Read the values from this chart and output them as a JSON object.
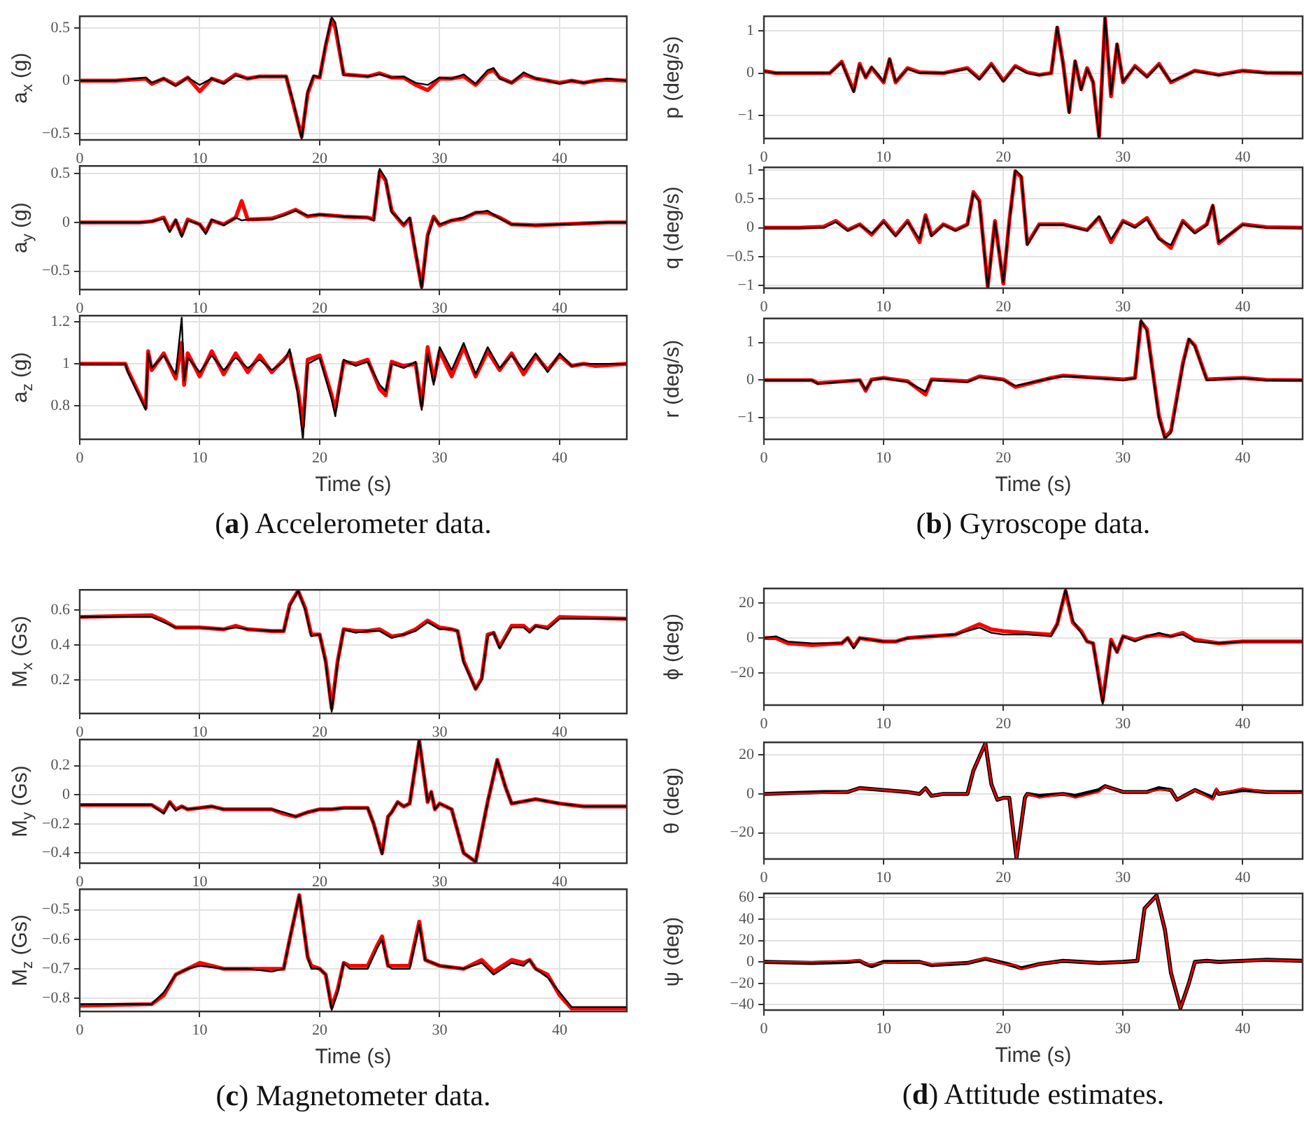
{
  "chart_data": [
    {
      "type": "line",
      "ylabel": "a$_{x}$ (g)",
      "marker": "none",
      "grid": true,
      "xlim": [
        0,
        45.6
      ],
      "xticks": [
        0,
        10,
        20,
        30,
        40
      ],
      "ylim": [
        -0.56,
        0.61
      ],
      "yticks": [
        -0.5,
        0,
        0.5
      ],
      "x": [
        0,
        3,
        5.5,
        6,
        7,
        8,
        9,
        10,
        11,
        12,
        13,
        14,
        15,
        16,
        17.2,
        17.8,
        18.5,
        19,
        19.5,
        20,
        20.5,
        21,
        21.3,
        22,
        23,
        24,
        25,
        26,
        27,
        28,
        29,
        30,
        31,
        32,
        33,
        34,
        34.5,
        35,
        36,
        37,
        38,
        39,
        40,
        41,
        42,
        43,
        44,
        45.6
      ],
      "series": [
        {
          "color": "#ff0000",
          "values": [
            0,
            0,
            0.02,
            -0.03,
            0.02,
            -0.04,
            0.03,
            -0.1,
            0.02,
            -0.02,
            0.06,
            0.02,
            0.04,
            0.04,
            0.04,
            -0.22,
            -0.53,
            -0.12,
            0.04,
            0.03,
            0.33,
            0.58,
            0.5,
            0.06,
            0.05,
            0.04,
            0.07,
            0.03,
            0.03,
            -0.04,
            -0.09,
            0.02,
            0.02,
            0.04,
            -0.04,
            0.08,
            0.1,
            0.03,
            -0.02,
            0.06,
            0.02,
            0,
            -0.02,
            0,
            -0.02,
            0,
            0.01,
            0
          ]
        },
        {
          "color": "#000000",
          "values": [
            0,
            0,
            0.03,
            -0.02,
            0.02,
            -0.05,
            0.03,
            -0.04,
            0.02,
            -0.03,
            0.05,
            0.02,
            0.04,
            0.04,
            0.04,
            -0.2,
            -0.55,
            -0.1,
            0.05,
            0.03,
            0.35,
            0.6,
            0.55,
            0.05,
            0.05,
            0.04,
            0.06,
            0.03,
            0.04,
            -0.02,
            -0.04,
            0.03,
            0.02,
            0.06,
            -0.03,
            0.1,
            0.12,
            0.02,
            -0.02,
            0.08,
            0.02,
            0,
            -0.03,
            0,
            -0.02,
            0,
            0.02,
            0
          ]
        }
      ]
    },
    {
      "type": "line",
      "ylabel": "a$_{y}$ (g)",
      "marker": "none",
      "grid": true,
      "xlim": [
        0,
        45.6
      ],
      "xticks": [
        0,
        10,
        20,
        30,
        40
      ],
      "ylim": [
        -0.69,
        0.58
      ],
      "yticks": [
        -0.5,
        0,
        0.5
      ],
      "x": [
        0,
        5,
        6,
        7,
        7.5,
        8,
        8.5,
        9,
        10,
        10.5,
        11,
        12,
        13,
        13.5,
        14,
        16,
        17,
        18,
        19,
        20,
        22,
        24,
        24.5,
        25,
        25.5,
        26,
        26.5,
        27,
        27.5,
        28,
        28.5,
        29,
        29.5,
        30,
        31,
        32,
        33,
        34,
        35,
        36,
        38,
        40,
        42,
        44,
        45.6
      ],
      "series": [
        {
          "color": "#ff0000",
          "values": [
            0,
            0,
            0.01,
            0.05,
            -0.08,
            0.02,
            -0.13,
            0.03,
            -0.02,
            -0.1,
            0.02,
            -0.02,
            0.05,
            0.22,
            0.03,
            0.04,
            0.08,
            0.13,
            0.06,
            0.08,
            0.06,
            0.05,
            0.03,
            0.52,
            0.43,
            0.12,
            0.04,
            -0.03,
            0.04,
            -0.32,
            -0.66,
            -0.13,
            0.06,
            -0.03,
            0.02,
            0.04,
            0.1,
            0.1,
            0.05,
            -0.02,
            -0.03,
            -0.02,
            -0.01,
            0,
            0
          ]
        },
        {
          "color": "#000000",
          "values": [
            0,
            0,
            0.01,
            0.04,
            -0.1,
            0.03,
            -0.15,
            0.02,
            -0.02,
            -0.12,
            0.03,
            -0.03,
            0.05,
            0.02,
            0.03,
            0.03,
            0.07,
            0.12,
            0.07,
            0.08,
            0.06,
            0.05,
            0.02,
            0.55,
            0.45,
            0.1,
            0.05,
            -0.02,
            0.05,
            -0.3,
            -0.68,
            -0.15,
            0.05,
            -0.02,
            0.02,
            0.05,
            0.1,
            0.12,
            0.04,
            -0.02,
            -0.03,
            -0.02,
            -0.01,
            0,
            0
          ]
        }
      ]
    },
    {
      "type": "line",
      "ylabel": "a$_{z}$ (g)",
      "xlabel": "Time (s)",
      "annotations": [
        "(a) Accelerometer data."
      ],
      "marker": "none",
      "grid": true,
      "xlim": [
        0,
        45.6
      ],
      "xticks": [
        0,
        10,
        20,
        30,
        40
      ],
      "ylim": [
        0.64,
        1.23
      ],
      "yticks": [
        0.8,
        1,
        1.2
      ],
      "x": [
        0,
        3.8,
        4,
        5.5,
        5.7,
        6,
        7,
        8,
        8.5,
        8.7,
        9,
        10,
        11,
        12,
        13,
        14,
        15,
        16,
        17,
        17.5,
        18.2,
        18.6,
        19,
        20,
        21,
        21.3,
        22,
        23,
        24,
        25,
        25.5,
        26,
        27,
        28,
        28.5,
        29,
        29.5,
        30,
        31,
        32,
        33,
        34,
        35,
        36,
        37,
        38,
        39,
        40,
        41,
        42,
        43,
        45.6
      ],
      "series": [
        {
          "color": "#ff0000",
          "values": [
            1,
            1,
            0.97,
            0.79,
            1.06,
            0.97,
            1.05,
            0.93,
            1.1,
            0.9,
            1.05,
            0.94,
            1.06,
            0.95,
            1.05,
            0.96,
            1.04,
            0.96,
            1.02,
            1.05,
            0.87,
            0.7,
            1.02,
            1.04,
            0.85,
            0.78,
            1.01,
            1,
            1.02,
            0.88,
            0.85,
            1.01,
            0.99,
            1,
            0.8,
            1.08,
            0.92,
            1.06,
            0.94,
            1.08,
            0.94,
            1.06,
            0.97,
            1.05,
            0.95,
            1.04,
            0.97,
            1.04,
            0.99,
            1,
            0.99,
            1
          ]
        },
        {
          "color": "#000000",
          "values": [
            1,
            1,
            0.96,
            0.78,
            1.05,
            0.98,
            1.04,
            0.95,
            1.22,
            0.92,
            1.03,
            0.96,
            1.04,
            0.97,
            1.03,
            0.98,
            1.02,
            0.97,
            1.01,
            1.07,
            0.85,
            0.64,
            1,
            1.03,
            0.83,
            0.75,
            1.02,
            0.99,
            1.01,
            0.9,
            0.87,
            1,
            0.98,
            1.01,
            0.78,
            1.05,
            0.9,
            1.08,
            0.97,
            1.1,
            0.95,
            1.08,
            0.98,
            1.04,
            0.97,
            1.05,
            0.96,
            1.05,
            0.99,
            1,
            1,
            1
          ]
        }
      ]
    },
    {
      "type": "line",
      "ylabel": "p (deg/s)",
      "marker": "none",
      "grid": true,
      "xlim": [
        0,
        45
      ],
      "xticks": [
        0,
        10,
        20,
        30,
        40
      ],
      "ylim": [
        -1.55,
        1.35
      ],
      "yticks": [
        -1,
        0,
        1
      ],
      "x": [
        0,
        1,
        5.5,
        6.5,
        7,
        7.5,
        8,
        8.5,
        9,
        10,
        10.5,
        11,
        12,
        13,
        15,
        17,
        18,
        19,
        20,
        21,
        22,
        23,
        24,
        24.5,
        25,
        25.5,
        26,
        26.5,
        27,
        27.5,
        28,
        28.5,
        29,
        29.5,
        30,
        31,
        32,
        33,
        34,
        36,
        38,
        40,
        42,
        45
      ],
      "series": [
        {
          "color": "#ff0000",
          "values": [
            0.05,
            0,
            0,
            0.27,
            -0.08,
            -0.42,
            0.22,
            -0.1,
            0.13,
            -0.22,
            0.33,
            -0.22,
            0.12,
            0.02,
            0,
            0.12,
            -0.13,
            0.22,
            -0.18,
            0.17,
            0.02,
            -0.04,
            0,
            1.08,
            0.22,
            -0.92,
            0.28,
            -0.38,
            0.12,
            -0.22,
            -1.5,
            1.3,
            -0.55,
            0.68,
            -0.22,
            0.17,
            -0.08,
            0.22,
            -0.22,
            0.06,
            -0.04,
            0.06,
            0.01,
            0
          ]
        },
        {
          "color": "#000000",
          "values": [
            0.05,
            0,
            0,
            0.25,
            -0.1,
            -0.45,
            0.2,
            -0.1,
            0.15,
            -0.2,
            0.35,
            -0.2,
            0.1,
            0,
            0,
            0.1,
            -0.15,
            0.2,
            -0.2,
            0.15,
            0,
            -0.05,
            0,
            1.1,
            0.2,
            -0.95,
            0.3,
            -0.4,
            0.1,
            -0.2,
            -1.55,
            1.35,
            -0.5,
            0.7,
            -0.2,
            0.15,
            -0.1,
            0.2,
            -0.2,
            0.05,
            -0.05,
            0.05,
            0,
            0
          ]
        }
      ]
    },
    {
      "type": "line",
      "ylabel": "q (deg/s)",
      "marker": "none",
      "grid": true,
      "xlim": [
        0,
        45
      ],
      "xticks": [
        0,
        10,
        20,
        30,
        40
      ],
      "ylim": [
        -1.05,
        1.05
      ],
      "yticks": [
        -1,
        -0.5,
        0,
        0.5,
        1
      ],
      "x": [
        0,
        3,
        5,
        6,
        7,
        8,
        9,
        10,
        11,
        12,
        13,
        13.5,
        14,
        15,
        16,
        17,
        17.5,
        18,
        18.7,
        19.3,
        20,
        20.5,
        21,
        21.5,
        22,
        23,
        25,
        27,
        28,
        29,
        30,
        31,
        32,
        33,
        34,
        35,
        36,
        37,
        37.5,
        38,
        40,
        42,
        45
      ],
      "series": [
        {
          "color": "#ff0000",
          "values": [
            0,
            0,
            0.02,
            0.12,
            -0.04,
            0.06,
            -0.12,
            0.12,
            -0.13,
            0.12,
            -0.25,
            0.22,
            -0.13,
            0.06,
            -0.04,
            0.06,
            0.62,
            0.47,
            -1.02,
            0.12,
            -0.97,
            0.12,
            0.98,
            0.88,
            -0.28,
            0.06,
            0.06,
            -0.04,
            0.18,
            -0.25,
            0.12,
            0.02,
            0.17,
            -0.18,
            -0.35,
            0.12,
            -0.08,
            0.06,
            0.38,
            -0.27,
            0.06,
            0.01,
            0
          ]
        },
        {
          "color": "#000000",
          "values": [
            0,
            0,
            0,
            0.1,
            -0.05,
            0.05,
            -0.1,
            0.1,
            -0.15,
            0.1,
            -0.2,
            0.2,
            -0.15,
            0.05,
            -0.05,
            0.05,
            0.6,
            0.45,
            -1.05,
            0.1,
            -0.95,
            0.1,
            1,
            0.9,
            -0.3,
            0.05,
            0.05,
            -0.05,
            0.2,
            -0.2,
            0.1,
            0,
            0.15,
            -0.2,
            -0.3,
            0.1,
            -0.1,
            0.05,
            0.4,
            -0.25,
            0.05,
            0,
            0
          ]
        }
      ]
    },
    {
      "type": "line",
      "ylabel": "r (deg/s)",
      "xlabel": "Time (s)",
      "annotations": [
        "(b) Gyroscope data."
      ],
      "marker": "none",
      "grid": true,
      "xlim": [
        0,
        45
      ],
      "xticks": [
        0,
        10,
        20,
        30,
        40
      ],
      "ylim": [
        -1.57,
        1.64
      ],
      "yticks": [
        -1,
        0,
        1
      ],
      "x": [
        0,
        4,
        4.5,
        8,
        8.5,
        9,
        10,
        12,
        13.5,
        14,
        17,
        18,
        20,
        21,
        24,
        25,
        28,
        30,
        31,
        31.5,
        32,
        33,
        33.5,
        34,
        35,
        35.5,
        36,
        37,
        40,
        42,
        45
      ],
      "series": [
        {
          "color": "#ff0000",
          "values": [
            0,
            0,
            -0.08,
            0,
            -0.28,
            0.02,
            0.06,
            -0.03,
            -0.38,
            0.02,
            -0.03,
            0.1,
            0.02,
            -0.18,
            0.06,
            0.12,
            0.06,
            0.02,
            0.06,
            1.55,
            1.35,
            -0.95,
            -1.52,
            -1.35,
            0.45,
            1.08,
            0.92,
            0.02,
            0.06,
            0.01,
            0
          ]
        },
        {
          "color": "#000000",
          "values": [
            0,
            0,
            -0.1,
            0,
            -0.25,
            0,
            0.05,
            -0.05,
            -0.3,
            0,
            -0.05,
            0.08,
            0,
            -0.15,
            0.05,
            0.1,
            0.05,
            0,
            0.05,
            1.6,
            1.3,
            -1,
            -1.55,
            -1.4,
            0.4,
            1.1,
            0.9,
            0,
            0.05,
            0,
            0
          ]
        }
      ]
    },
    {
      "type": "line",
      "ylabel": "M$_{x}$ (Gs)",
      "marker": "none",
      "grid": true,
      "xlim": [
        0,
        45.6
      ],
      "xticks": [
        0,
        10,
        20,
        30,
        40
      ],
      "ylim": [
        0.01,
        0.715
      ],
      "yticks": [
        0.2,
        0.4,
        0.6
      ],
      "x": [
        0,
        6,
        7,
        8,
        10,
        12,
        13,
        14,
        16,
        17,
        17.5,
        18.2,
        18.8,
        19.3,
        20,
        20.5,
        21,
        21.5,
        22,
        23,
        24,
        25,
        26,
        27,
        28,
        29,
        30,
        31,
        31.5,
        32,
        33,
        33.5,
        34,
        34.5,
        35,
        36,
        37,
        37.5,
        38,
        39,
        40,
        45.6
      ],
      "series": [
        {
          "color": "#ff0000",
          "values": [
            0.56,
            0.57,
            0.54,
            0.5,
            0.5,
            0.49,
            0.51,
            0.49,
            0.48,
            0.48,
            0.63,
            0.71,
            0.61,
            0.46,
            0.46,
            0.31,
            0.04,
            0.31,
            0.49,
            0.48,
            0.48,
            0.49,
            0.45,
            0.46,
            0.49,
            0.54,
            0.5,
            0.49,
            0.48,
            0.31,
            0.15,
            0.21,
            0.46,
            0.47,
            0.39,
            0.51,
            0.51,
            0.48,
            0.51,
            0.5,
            0.56,
            0.55
          ]
        },
        {
          "color": "#000000",
          "values": [
            0.56,
            0.56,
            0.53,
            0.5,
            0.5,
            0.49,
            0.5,
            0.49,
            0.48,
            0.48,
            0.62,
            0.71,
            0.6,
            0.45,
            0.46,
            0.3,
            0.02,
            0.3,
            0.49,
            0.47,
            0.48,
            0.48,
            0.44,
            0.46,
            0.48,
            0.53,
            0.49,
            0.49,
            0.48,
            0.3,
            0.15,
            0.2,
            0.45,
            0.47,
            0.38,
            0.5,
            0.5,
            0.47,
            0.51,
            0.49,
            0.55,
            0.55
          ]
        }
      ]
    },
    {
      "type": "line",
      "ylabel": "M$_{y}$ (Gs)",
      "marker": "none",
      "grid": true,
      "xlim": [
        0,
        45.6
      ],
      "xticks": [
        0,
        10,
        20,
        30,
        40
      ],
      "ylim": [
        -0.47,
        0.38
      ],
      "yticks": [
        -0.4,
        -0.2,
        0,
        0.2
      ],
      "x": [
        0,
        6,
        7,
        7.5,
        8,
        8.5,
        9,
        10,
        11,
        12,
        14,
        16,
        17,
        18,
        19,
        20,
        21,
        22,
        24,
        24.5,
        25.2,
        25.7,
        26,
        26.5,
        27,
        27.5,
        28.3,
        29,
        29.3,
        29.6,
        30,
        31,
        32,
        33,
        34,
        34.8,
        35.5,
        36,
        38,
        40,
        42,
        45.6
      ],
      "series": [
        {
          "color": "#ff0000",
          "values": [
            -0.07,
            -0.07,
            -0.12,
            -0.05,
            -0.1,
            -0.08,
            -0.1,
            -0.09,
            -0.08,
            -0.1,
            -0.1,
            -0.1,
            -0.13,
            -0.15,
            -0.12,
            -0.1,
            -0.1,
            -0.09,
            -0.09,
            -0.2,
            -0.4,
            -0.15,
            -0.12,
            -0.05,
            -0.08,
            -0.06,
            0.37,
            -0.05,
            0.02,
            -0.1,
            -0.06,
            -0.1,
            -0.4,
            -0.46,
            -0.05,
            0.24,
            0.05,
            -0.06,
            -0.03,
            -0.06,
            -0.08,
            -0.08
          ]
        },
        {
          "color": "#000000",
          "values": [
            -0.07,
            -0.07,
            -0.13,
            -0.05,
            -0.11,
            -0.08,
            -0.1,
            -0.09,
            -0.08,
            -0.1,
            -0.1,
            -0.1,
            -0.12,
            -0.15,
            -0.12,
            -0.1,
            -0.1,
            -0.09,
            -0.09,
            -0.2,
            -0.41,
            -0.15,
            -0.12,
            -0.05,
            -0.08,
            -0.06,
            0.38,
            -0.05,
            0.02,
            -0.1,
            -0.06,
            -0.1,
            -0.4,
            -0.46,
            -0.05,
            0.24,
            0.05,
            -0.06,
            -0.03,
            -0.06,
            -0.08,
            -0.08
          ]
        }
      ]
    },
    {
      "type": "line",
      "ylabel": "M$_{z}$ (Gs)",
      "xlabel": "Time (s)",
      "annotations": [
        "(c) Magnetometer data."
      ],
      "marker": "none",
      "grid": true,
      "xlim": [
        0,
        45.6
      ],
      "xticks": [
        0,
        10,
        20,
        30,
        40
      ],
      "ylim": [
        -0.845,
        -0.43
      ],
      "yticks": [
        -0.8,
        -0.7,
        -0.6,
        -0.5
      ],
      "x": [
        0,
        6,
        7,
        8,
        9,
        10,
        12,
        14,
        16,
        17,
        17.5,
        18.3,
        19,
        19.3,
        20,
        20.5,
        21,
        21.5,
        22,
        22.5,
        24,
        24.8,
        25.2,
        25.7,
        26,
        27.5,
        28.3,
        28.8,
        30,
        32,
        33.5,
        34.5,
        36,
        37,
        37.5,
        38,
        39,
        40,
        41,
        45.6
      ],
      "series": [
        {
          "color": "#ff0000",
          "values": [
            -0.825,
            -0.82,
            -0.79,
            -0.72,
            -0.7,
            -0.68,
            -0.7,
            -0.7,
            -0.7,
            -0.7,
            -0.6,
            -0.45,
            -0.66,
            -0.69,
            -0.7,
            -0.72,
            -0.83,
            -0.77,
            -0.68,
            -0.69,
            -0.69,
            -0.62,
            -0.59,
            -0.69,
            -0.69,
            -0.69,
            -0.54,
            -0.67,
            -0.69,
            -0.7,
            -0.67,
            -0.71,
            -0.67,
            -0.68,
            -0.67,
            -0.7,
            -0.72,
            -0.79,
            -0.835,
            -0.835
          ]
        },
        {
          "color": "#000000",
          "values": [
            -0.82,
            -0.82,
            -0.78,
            -0.72,
            -0.7,
            -0.69,
            -0.7,
            -0.7,
            -0.71,
            -0.7,
            -0.6,
            -0.45,
            -0.66,
            -0.7,
            -0.7,
            -0.72,
            -0.84,
            -0.78,
            -0.68,
            -0.7,
            -0.7,
            -0.63,
            -0.6,
            -0.69,
            -0.7,
            -0.7,
            -0.55,
            -0.67,
            -0.69,
            -0.7,
            -0.68,
            -0.72,
            -0.68,
            -0.69,
            -0.67,
            -0.7,
            -0.73,
            -0.78,
            -0.83,
            -0.83
          ]
        }
      ]
    },
    {
      "type": "line",
      "ylabel": "ϕ (deg)",
      "marker": "none",
      "grid": true,
      "xlim": [
        0,
        45
      ],
      "xticks": [
        0,
        10,
        20,
        30,
        40
      ],
      "ylim": [
        -38.5,
        28.5
      ],
      "yticks": [
        -20,
        0,
        20
      ],
      "x": [
        0,
        1,
        2,
        4,
        6.5,
        7,
        7.5,
        8,
        9,
        10,
        11,
        12,
        14,
        16,
        18,
        19,
        20,
        22,
        24,
        24.5,
        25.2,
        25.8,
        26.5,
        27,
        27.5,
        28.3,
        29,
        29.5,
        30,
        31,
        32,
        33,
        34,
        35,
        36,
        38,
        40,
        45
      ],
      "series": [
        {
          "color": "#ff0000",
          "values": [
            0,
            0,
            -3,
            -4,
            -3,
            0,
            -5,
            0,
            -1,
            -2,
            -2,
            0,
            1,
            2,
            8,
            5,
            4,
            3,
            2,
            8,
            27,
            9,
            4,
            -2,
            -3,
            -36,
            -1,
            -8,
            1,
            -1,
            1,
            2,
            1,
            3,
            -1,
            -3,
            -2,
            -2
          ]
        },
        {
          "color": "#000000",
          "values": [
            0,
            1,
            -2,
            -3,
            -3,
            0,
            -6,
            0,
            -1,
            -2,
            -2,
            0,
            1,
            2,
            6,
            3,
            2,
            2,
            1,
            8,
            28,
            10,
            3,
            -2,
            -3,
            -38,
            -2,
            -8,
            1,
            -2,
            1,
            3,
            1,
            2,
            -2,
            -3,
            -2,
            -2
          ]
        }
      ]
    },
    {
      "type": "line",
      "ylabel": "θ (deg)",
      "marker": "none",
      "grid": true,
      "xlim": [
        0,
        45
      ],
      "xticks": [
        0,
        10,
        20,
        30,
        40
      ],
      "ylim": [
        -33.4,
        26.5
      ],
      "yticks": [
        -20,
        0,
        20
      ],
      "x": [
        0,
        5,
        7,
        8,
        10,
        12,
        13,
        13.5,
        14,
        15,
        16,
        17,
        17.5,
        18.5,
        19,
        19.5,
        20,
        20.5,
        21.1,
        21.8,
        22,
        23,
        25,
        26,
        28,
        28.5,
        30,
        32,
        33,
        34,
        34.5,
        36,
        37.5,
        37.8,
        38,
        40,
        42,
        45
      ],
      "series": [
        {
          "color": "#000000",
          "values": [
            0,
            1,
            1,
            3,
            2,
            1,
            0,
            3,
            -1,
            0,
            0,
            0,
            12,
            26,
            5,
            -3,
            -2,
            -2,
            -33,
            -2,
            0,
            -1,
            0,
            -1,
            2,
            4,
            1,
            1,
            3,
            2,
            -3,
            2,
            -2,
            2,
            0,
            2,
            1,
            1
          ]
        },
        {
          "color": "#ff0000",
          "values": [
            0,
            0.5,
            1,
            3,
            2,
            1,
            0,
            3,
            -1,
            0,
            0,
            0,
            12,
            26,
            5,
            -3,
            -2,
            -2,
            -33,
            -2,
            0,
            -2,
            0,
            -2,
            1,
            4,
            1,
            1,
            2,
            2,
            -3,
            2,
            -3,
            3,
            0,
            3,
            1,
            0.5
          ]
        }
      ]
    },
    {
      "type": "line",
      "ylabel": "ψ (deg)",
      "xlabel": "Time (s)",
      "annotations": [
        "(d) Attitude estimates."
      ],
      "marker": "none",
      "grid": true,
      "xlim": [
        0,
        45
      ],
      "xticks": [
        0,
        10,
        20,
        30,
        40
      ],
      "ylim": [
        -45,
        64
      ],
      "yticks": [
        -40,
        -20,
        0,
        20,
        40,
        60
      ],
      "x": [
        0,
        4,
        7,
        8,
        8.5,
        9,
        10,
        13,
        14,
        17,
        18.5,
        20,
        21,
        21.5,
        23,
        25,
        28,
        30,
        31.2,
        31.8,
        32.8,
        33.5,
        34,
        34.8,
        35.5,
        36,
        37,
        38,
        40,
        42,
        45
      ],
      "series": [
        {
          "color": "#000000",
          "values": [
            0,
            -1,
            0,
            1,
            -2,
            -4,
            0,
            0,
            -3,
            -1,
            3,
            -1,
            -4,
            -6,
            -2,
            1,
            -1,
            0,
            1,
            50,
            62,
            30,
            -10,
            -43,
            -20,
            0,
            1,
            0,
            1,
            2,
            1
          ]
        },
        {
          "color": "#ff0000",
          "values": [
            0,
            0,
            1,
            2,
            -2,
            -2,
            -1,
            0,
            -2,
            -1,
            4,
            -2,
            -3,
            -7,
            -2,
            1,
            -1,
            0,
            1,
            50,
            62,
            30,
            -10,
            -43,
            -20,
            0,
            1,
            0,
            1,
            2,
            1
          ]
        }
      ]
    }
  ]
}
